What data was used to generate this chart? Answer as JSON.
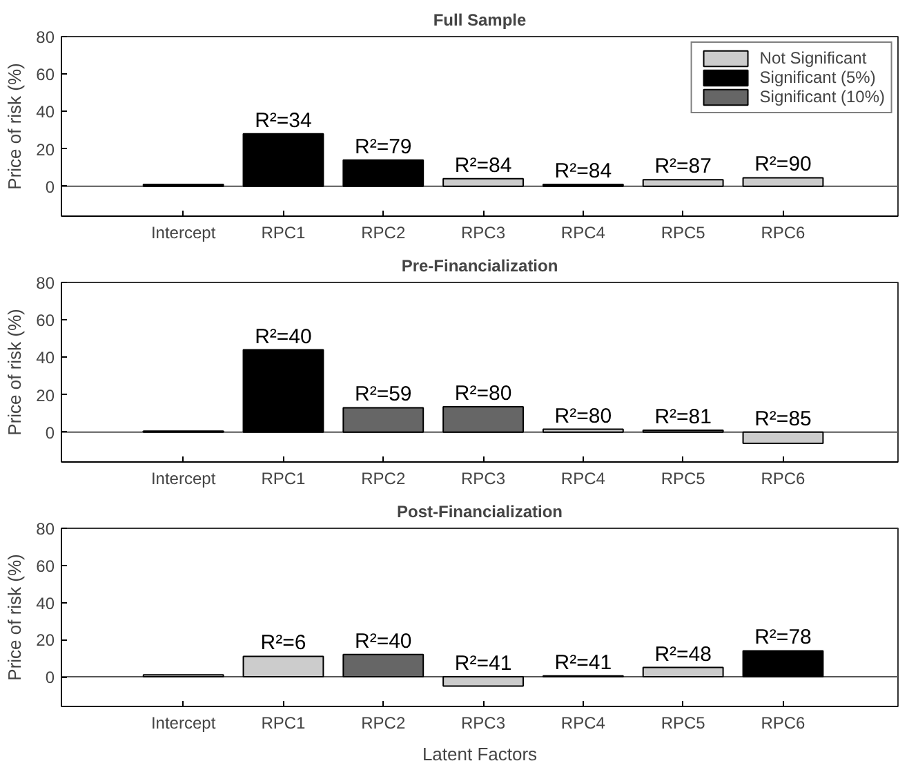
{
  "chart_data": [
    {
      "type": "bar",
      "title": "Full Sample",
      "ylabel": "Price of risk (%)",
      "categories": [
        "Intercept",
        "RPC1",
        "RPC2",
        "RPC3",
        "RPC4",
        "RPC5",
        "RPC6"
      ],
      "series": [
        {
          "name": "Not Significant",
          "color": "#cccccc",
          "values": [
            null,
            null,
            null,
            4,
            null,
            3.5,
            4.5
          ]
        },
        {
          "name": "Significant (5%)",
          "color": "#000000",
          "values": [
            1,
            28,
            14,
            null,
            1,
            null,
            null
          ]
        },
        {
          "name": "Significant (10%)",
          "color": "#666666",
          "values": [
            null,
            null,
            null,
            null,
            null,
            null,
            null
          ]
        }
      ],
      "ylim": [
        -16,
        80
      ],
      "yticks": [
        0,
        20,
        40,
        60,
        80
      ],
      "legend": "top right",
      "annotations": [
        {
          "text": "R²=34",
          "x": "RPC1",
          "y": 28
        },
        {
          "text": "R²=79",
          "x": "RPC2",
          "y": 14
        },
        {
          "text": "R²=84",
          "x": "RPC3",
          "y": 4
        },
        {
          "text": "R²=84",
          "x": "RPC4",
          "y": 1
        },
        {
          "text": "R²=87",
          "x": "RPC5",
          "y": 3.5
        },
        {
          "text": "R²=90",
          "x": "RPC6",
          "y": 4.5
        }
      ]
    },
    {
      "type": "bar",
      "title": "Pre-Financialization",
      "ylabel": "Price of risk (%)",
      "categories": [
        "Intercept",
        "RPC1",
        "RPC2",
        "RPC3",
        "RPC4",
        "RPC5",
        "RPC6"
      ],
      "series": [
        {
          "color": "#cccccc",
          "values": [
            null,
            null,
            null,
            null,
            1.5,
            null,
            -6
          ]
        },
        {
          "color": "#000000",
          "values": [
            0.5,
            44,
            null,
            null,
            null,
            null,
            null
          ]
        },
        {
          "color": "#666666",
          "values": [
            null,
            null,
            13,
            13.5,
            null,
            1,
            null
          ]
        }
      ],
      "ylim": [
        -16,
        80
      ],
      "yticks": [
        0,
        20,
        40,
        60,
        80
      ],
      "annotations": [
        {
          "text": "R²=40",
          "x": "RPC1",
          "y": 44
        },
        {
          "text": "R²=59",
          "x": "RPC2",
          "y": 13
        },
        {
          "text": "R²=80",
          "x": "RPC3",
          "y": 13.5
        },
        {
          "text": "R²=80",
          "x": "RPC4",
          "y": 1.5
        },
        {
          "text": "R²=81",
          "x": "RPC5",
          "y": 1
        },
        {
          "text": "R²=85",
          "x": "RPC6",
          "y": -6
        }
      ]
    },
    {
      "type": "bar",
      "title": "Post-Financialization",
      "ylabel": "Price of risk (%)",
      "xlabel": "Latent Factors",
      "categories": [
        "Intercept",
        "RPC1",
        "RPC2",
        "RPC3",
        "RPC4",
        "RPC5",
        "RPC6"
      ],
      "series": [
        {
          "color": "#cccccc",
          "values": [
            1,
            11,
            null,
            -5,
            null,
            5,
            null
          ]
        },
        {
          "color": "#000000",
          "values": [
            null,
            null,
            null,
            null,
            0.5,
            null,
            14
          ]
        },
        {
          "color": "#666666",
          "values": [
            null,
            null,
            12,
            null,
            null,
            null,
            null
          ]
        }
      ],
      "ylim": [
        -16,
        80
      ],
      "yticks": [
        0,
        20,
        40,
        60,
        80
      ],
      "annotations": [
        {
          "text": "R²=6",
          "x": "RPC1",
          "y": 11
        },
        {
          "text": "R²=40",
          "x": "RPC2",
          "y": 12
        },
        {
          "text": "R²=41",
          "x": "RPC3",
          "y": -5
        },
        {
          "text": "R²=41",
          "x": "RPC4",
          "y": 0.5
        },
        {
          "text": "R²=48",
          "x": "RPC5",
          "y": 5
        },
        {
          "text": "R²=78",
          "x": "RPC6",
          "y": 14
        }
      ]
    }
  ]
}
